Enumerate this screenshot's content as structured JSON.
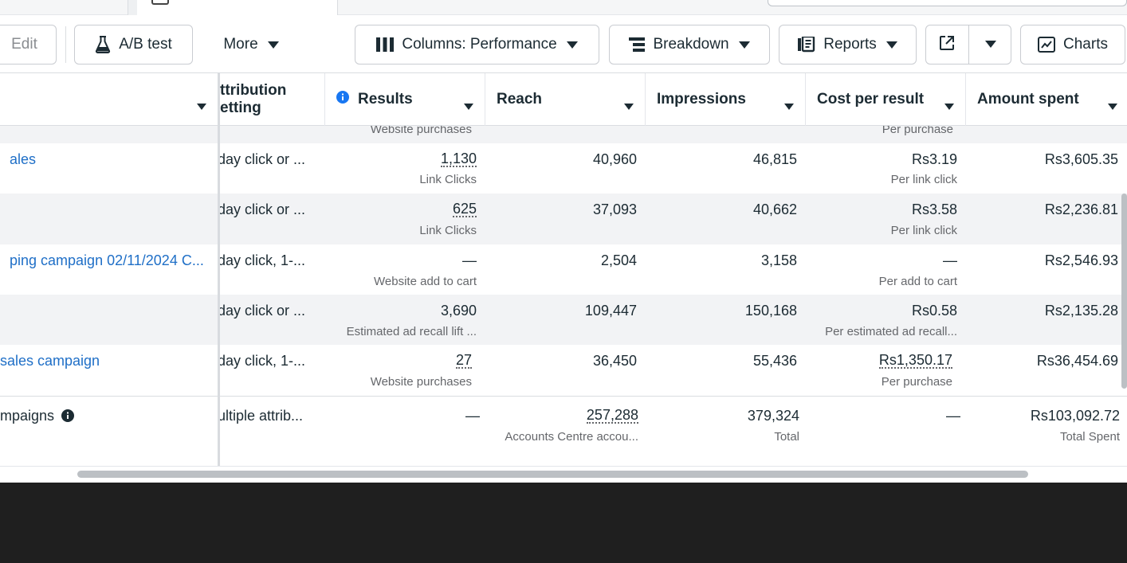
{
  "toolbar": {
    "edit_label": "Edit",
    "ab_test_label": "A/B test",
    "more_label": "More",
    "columns_label": "Columns: Performance",
    "breakdown_label": "Breakdown",
    "reports_label": "Reports",
    "charts_label": "Charts"
  },
  "columns": {
    "attribution": "Attribution setting",
    "attribution_l1": "ttribution",
    "attribution_l2": "etting",
    "results": "Results",
    "reach": "Reach",
    "impressions": "Impressions",
    "cost_per_result": "Cost per result",
    "amount_spent": "Amount spent"
  },
  "partial_row": {
    "results_sub": "Website purchases",
    "cost_sub": "Per purchase"
  },
  "rows": [
    {
      "name": "ales",
      "attribution": "day click or ...",
      "results": "1,130",
      "results_sub": "Link Clicks",
      "reach": "40,960",
      "impressions": "46,815",
      "cost": "Rs3.19",
      "cost_sub": "Per link click",
      "spent": "Rs3,605.35"
    },
    {
      "name": "",
      "attribution": "day click or ...",
      "results": "625",
      "results_sub": "Link Clicks",
      "reach": "37,093",
      "impressions": "40,662",
      "cost": "Rs3.58",
      "cost_sub": "Per link click",
      "spent": "Rs2,236.81"
    },
    {
      "name": "ping campaign 02/11/2024 C...",
      "attribution": "day click, 1-...",
      "results": "—",
      "results_sub": "Website add to cart",
      "reach": "2,504",
      "impressions": "3,158",
      "cost": "—",
      "cost_sub": "Per add to cart",
      "spent": "Rs2,546.93"
    },
    {
      "name": "",
      "attribution": "day click or ...",
      "results": "3,690",
      "results_sub": "Estimated ad recall lift ...",
      "reach": "109,447",
      "impressions": "150,168",
      "cost": "Rs0.58",
      "cost_sub": "Per estimated ad recall...",
      "spent": "Rs2,135.28"
    },
    {
      "name": "sales campaign",
      "attribution": "day click, 1-...",
      "results": "27",
      "results_sub": "Website purchases",
      "reach": "36,450",
      "impressions": "55,436",
      "cost": "Rs1,350.17",
      "cost_sub": "Per purchase",
      "spent": "Rs36,454.69"
    }
  ],
  "total": {
    "name": "mpaigns",
    "attribution": "ultiple attrib...",
    "results": "—",
    "reach": "257,288",
    "reach_sub": "Accounts Centre accou...",
    "impressions": "379,324",
    "impressions_sub": "Total",
    "cost": "—",
    "spent": "Rs103,092.72",
    "spent_sub": "Total Spent"
  },
  "colors": {
    "link": "#1f6fc7",
    "alt_row": "#f2f3f5",
    "info_icon": "#1877f2",
    "background_dark": "#1f1f1f"
  },
  "icons": {
    "ab_test": "flask-icon",
    "columns": "columns-icon",
    "breakdown": "breakdown-icon",
    "reports": "reports-icon",
    "export": "export-icon",
    "charts": "line-chart-icon",
    "info": "info-icon"
  }
}
